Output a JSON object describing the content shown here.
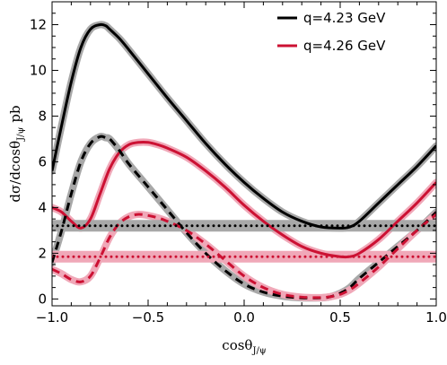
{
  "chart_data": {
    "type": "line",
    "xlabel": "cosθ",
    "xlabel_sub": "J/ψ",
    "ylabel": "dσ/dcosθ",
    "ylabel_sub": "J/ψ",
    "ylabel_unit": "pb",
    "xlim": [
      -1.0,
      1.0
    ],
    "ylim": [
      -0.3,
      13.0
    ],
    "xticks": [
      -1.0,
      -0.5,
      0.0,
      0.5,
      1.0
    ],
    "xtick_labels": [
      "−1.0",
      "−0.5",
      "0.0",
      "0.5",
      "1.0"
    ],
    "yticks": [
      0,
      2,
      4,
      6,
      8,
      10,
      12
    ],
    "ytick_labels": [
      "0",
      "2",
      "4",
      "6",
      "8",
      "10",
      "12"
    ],
    "grid": false,
    "legend_position": "top-right",
    "colors": {
      "q423": "#000000",
      "q426": "#cc1133",
      "band423": "#a8a8a8",
      "band426": "#f0a8b8"
    },
    "legend": [
      {
        "label": "q=4.23 GeV",
        "color": "#000000"
      },
      {
        "label": "q=4.26 GeV",
        "color": "#cc1133"
      }
    ],
    "series": [
      {
        "name": "q=4.23 GeV",
        "style": "solid",
        "color": "#000000",
        "band": "#a8a8a8",
        "x": [
          -1.0,
          -0.95,
          -0.9,
          -0.85,
          -0.8,
          -0.75,
          -0.72,
          -0.7,
          -0.65,
          -0.6,
          -0.5,
          -0.4,
          -0.3,
          -0.2,
          -0.1,
          0.0,
          0.1,
          0.2,
          0.3,
          0.4,
          0.5,
          0.55,
          0.6,
          0.7,
          0.8,
          0.9,
          1.0
        ],
        "y": [
          5.6,
          7.6,
          9.5,
          11.0,
          11.8,
          12.0,
          11.95,
          11.8,
          11.4,
          10.9,
          9.85,
          8.8,
          7.8,
          6.8,
          5.9,
          5.1,
          4.4,
          3.8,
          3.4,
          3.15,
          3.1,
          3.15,
          3.4,
          4.2,
          5.0,
          5.8,
          6.7
        ]
      },
      {
        "name": "q=4.26 GeV",
        "style": "solid",
        "color": "#cc1133",
        "band": "#f0a8b8",
        "x": [
          -1.0,
          -0.95,
          -0.9,
          -0.85,
          -0.8,
          -0.75,
          -0.7,
          -0.65,
          -0.6,
          -0.55,
          -0.5,
          -0.45,
          -0.4,
          -0.3,
          -0.2,
          -0.1,
          0.0,
          0.1,
          0.2,
          0.3,
          0.4,
          0.5,
          0.55,
          0.6,
          0.7,
          0.8,
          0.9,
          1.0
        ],
        "y": [
          4.0,
          3.8,
          3.4,
          3.1,
          3.5,
          4.6,
          5.7,
          6.4,
          6.75,
          6.85,
          6.85,
          6.75,
          6.6,
          6.2,
          5.6,
          4.9,
          4.1,
          3.4,
          2.8,
          2.3,
          2.0,
          1.85,
          1.85,
          2.0,
          2.6,
          3.4,
          4.2,
          5.1
        ]
      },
      {
        "style": "dashed",
        "color": "#000000",
        "band": "#a8a8a8",
        "x": [
          -1.0,
          -0.95,
          -0.9,
          -0.85,
          -0.8,
          -0.75,
          -0.72,
          -0.7,
          -0.65,
          -0.6,
          -0.5,
          -0.4,
          -0.3,
          -0.2,
          -0.1,
          0.0,
          0.1,
          0.2,
          0.3,
          0.4,
          0.45,
          0.5,
          0.55,
          0.6,
          0.7,
          0.8,
          0.9,
          1.0
        ],
        "y": [
          1.6,
          3.0,
          4.6,
          6.0,
          6.8,
          7.1,
          7.05,
          7.0,
          6.5,
          5.9,
          4.9,
          3.9,
          2.9,
          2.0,
          1.25,
          0.65,
          0.3,
          0.12,
          0.05,
          0.05,
          0.1,
          0.25,
          0.5,
          0.9,
          1.6,
          2.3,
          3.0,
          3.8
        ]
      },
      {
        "style": "dashed",
        "color": "#cc1133",
        "band": "#f0a8b8",
        "x": [
          -1.0,
          -0.95,
          -0.9,
          -0.85,
          -0.8,
          -0.75,
          -0.7,
          -0.65,
          -0.6,
          -0.55,
          -0.5,
          -0.45,
          -0.4,
          -0.3,
          -0.2,
          -0.1,
          0.0,
          0.1,
          0.2,
          0.3,
          0.4,
          0.45,
          0.5,
          0.55,
          0.6,
          0.7,
          0.8,
          0.9,
          1.0
        ],
        "y": [
          1.3,
          1.1,
          0.85,
          0.75,
          1.0,
          1.8,
          2.7,
          3.3,
          3.6,
          3.7,
          3.65,
          3.55,
          3.4,
          3.0,
          2.4,
          1.7,
          1.0,
          0.5,
          0.2,
          0.08,
          0.06,
          0.1,
          0.2,
          0.4,
          0.7,
          1.4,
          2.2,
          3.0,
          3.7
        ]
      },
      {
        "style": "dotted",
        "color": "#000000",
        "band": "#a8a8a8",
        "x": [
          -1.0,
          1.0
        ],
        "y": [
          3.2,
          3.2
        ]
      },
      {
        "style": "dotted",
        "color": "#cc1133",
        "band": "#f0a8b8",
        "x": [
          -1.0,
          1.0
        ],
        "y": [
          1.85,
          1.85
        ]
      }
    ]
  }
}
